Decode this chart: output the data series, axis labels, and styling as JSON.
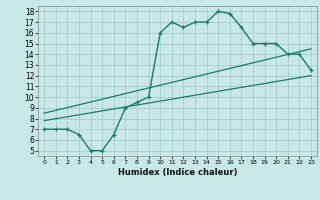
{
  "xlabel": "Humidex (Indice chaleur)",
  "bg_color": "#c8e8e8",
  "line_color": "#1a7a6e",
  "grid_color": "#a0c8c8",
  "xlim": [
    -0.5,
    23.5
  ],
  "ylim": [
    4.5,
    18.5
  ],
  "xticks": [
    0,
    1,
    2,
    3,
    4,
    5,
    6,
    7,
    8,
    9,
    10,
    11,
    12,
    13,
    14,
    15,
    16,
    17,
    18,
    19,
    20,
    21,
    22,
    23
  ],
  "yticks": [
    5,
    6,
    7,
    8,
    9,
    10,
    11,
    12,
    13,
    14,
    15,
    16,
    17,
    18
  ],
  "curve1_x": [
    0,
    1,
    2,
    3,
    4,
    5,
    6,
    7,
    8,
    9,
    10,
    11,
    12,
    13,
    14,
    15,
    16,
    17,
    18,
    19,
    20,
    21,
    22,
    23
  ],
  "curve1_y": [
    7.0,
    7.0,
    7.0,
    6.5,
    5.0,
    5.0,
    6.5,
    9.0,
    9.5,
    10.0,
    16.0,
    17.0,
    16.5,
    17.0,
    17.0,
    18.0,
    17.8,
    16.5,
    15.0,
    15.0,
    15.0,
    14.0,
    14.0,
    12.5
  ],
  "curve2_x": [
    0,
    23
  ],
  "curve2_y": [
    7.8,
    12.0
  ],
  "curve3_x": [
    0,
    23
  ],
  "curve3_y": [
    8.5,
    14.5
  ],
  "spine_color": "#888888"
}
